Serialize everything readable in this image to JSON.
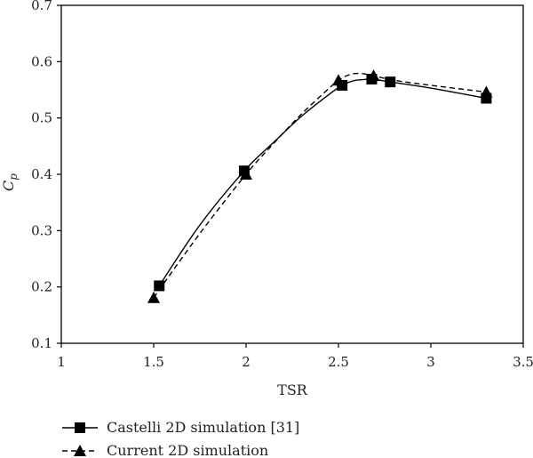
{
  "chart_data": {
    "type": "line",
    "title": "",
    "xlabel": "TSR",
    "ylabel_main": "C",
    "ylabel_sub": "p",
    "xlim": [
      1,
      3.5
    ],
    "ylim": [
      0.1,
      0.7
    ],
    "xticks": [
      "1",
      "1.5",
      "2",
      "2.5",
      "3",
      "3.5"
    ],
    "yticks": [
      "0.1",
      "0.2",
      "0.3",
      "0.4",
      "0.5",
      "0.6",
      "0.7"
    ],
    "grid": false,
    "legend_position": "bottom-left",
    "series": [
      {
        "name": "Castelli 2D simulation [31]",
        "marker": "square",
        "line_style": "solid",
        "color": "#000000",
        "x": [
          1.53,
          1.99,
          2.52,
          2.68,
          2.78,
          3.3
        ],
        "y": [
          0.202,
          0.406,
          0.558,
          0.569,
          0.564,
          0.535
        ],
        "curve_x": [
          1.53,
          1.75,
          1.99,
          2.15,
          2.3,
          2.45,
          2.52,
          2.58,
          2.63,
          2.68,
          2.78,
          3.0,
          3.3
        ],
        "curve_y": [
          0.202,
          0.31,
          0.406,
          0.457,
          0.503,
          0.542,
          0.558,
          0.566,
          0.568,
          0.569,
          0.564,
          0.553,
          0.535
        ]
      },
      {
        "name": "Current 2D simulation",
        "marker": "triangle",
        "line_style": "dashed",
        "color": "#000000",
        "x": [
          1.5,
          2.0,
          2.5,
          2.69,
          3.3
        ],
        "y": [
          0.181,
          0.4,
          0.567,
          0.575,
          0.546
        ],
        "curve_x": [
          1.5,
          1.75,
          2.0,
          2.15,
          2.3,
          2.45,
          2.5,
          2.56,
          2.62,
          2.69,
          2.8,
          3.0,
          3.3
        ],
        "curve_y": [
          0.181,
          0.295,
          0.4,
          0.455,
          0.507,
          0.553,
          0.567,
          0.577,
          0.579,
          0.575,
          0.567,
          0.558,
          0.546
        ]
      }
    ]
  }
}
